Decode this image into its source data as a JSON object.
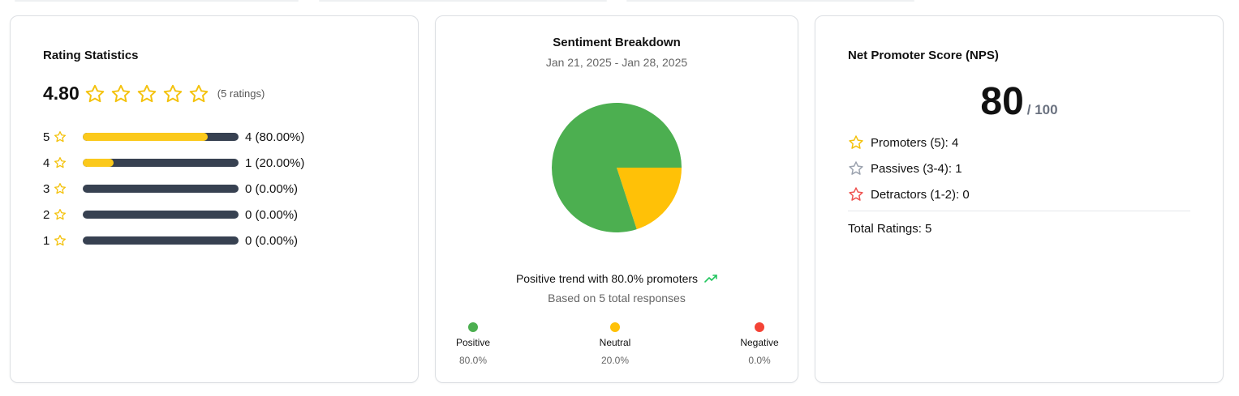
{
  "colors": {
    "star_yellow": "#f4c20d",
    "bar_fill": "#fbc91c",
    "bar_track": "#374151",
    "positive": "#4caf50",
    "neutral": "#ffc107",
    "negative": "#f44336",
    "passive_star": "#9ca3af",
    "detractor_star": "#ef5350",
    "trend_green": "#22c55e"
  },
  "rating": {
    "title": "Rating Statistics",
    "average": "4.80",
    "count_label": "(5 ratings)",
    "star_icon": "star-outline-icon",
    "distribution": [
      {
        "stars": "5",
        "fraction": 0.8,
        "label": "4 (80.00%)"
      },
      {
        "stars": "4",
        "fraction": 0.2,
        "label": "1 (20.00%)"
      },
      {
        "stars": "3",
        "fraction": 0.0,
        "label": "0 (0.00%)"
      },
      {
        "stars": "2",
        "fraction": 0.0,
        "label": "0 (0.00%)"
      },
      {
        "stars": "1",
        "fraction": 0.0,
        "label": "0 (0.00%)"
      }
    ]
  },
  "sentiment": {
    "title": "Sentiment Breakdown",
    "date_range": "Jan 21, 2025 - Jan 28, 2025",
    "trend_text": "Positive trend with 80.0% promoters",
    "trend_icon": "trending-up-icon",
    "based_on": "Based on 5 total responses",
    "legend": [
      {
        "name": "Positive",
        "pct": "80.0%"
      },
      {
        "name": "Neutral",
        "pct": "20.0%"
      },
      {
        "name": "Negative",
        "pct": "0.0%"
      }
    ]
  },
  "chart_data": {
    "type": "pie",
    "categories": [
      "Positive",
      "Neutral",
      "Negative"
    ],
    "values": [
      80.0,
      20.0,
      0.0
    ],
    "colors": [
      "#4caf50",
      "#ffc107",
      "#f44336"
    ],
    "title": "Sentiment Breakdown"
  },
  "nps": {
    "title": "Net Promoter Score (NPS)",
    "score": "80",
    "out_of": "/ 100",
    "promoters": "Promoters (5): 4",
    "passives": "Passives (3-4): 1",
    "detractors": "Detractors (1-2): 0",
    "total": "Total Ratings: 5"
  }
}
